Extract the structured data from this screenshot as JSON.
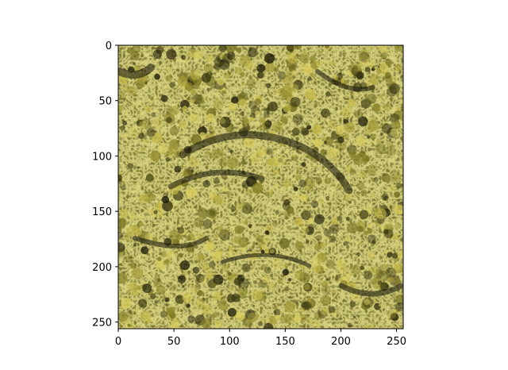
{
  "image_panel": {
    "description_type": "aerial forest canopy image",
    "palette": {
      "deep_shadow": "#1b1a06",
      "shadow": "#3a3810",
      "mid_olive": "#6f6a1e",
      "olive": "#857f27",
      "yellow_green": "#a39a35",
      "highlight": "#c4b848",
      "bright_highlight": "#d8cc5c"
    }
  },
  "axes": {
    "x": {
      "ticks": [
        0,
        50,
        100,
        150,
        200,
        250
      ],
      "range": [
        0,
        256
      ]
    },
    "y": {
      "ticks": [
        0,
        50,
        100,
        150,
        200,
        250
      ],
      "range": [
        0,
        256
      ],
      "inverted": true
    }
  },
  "x_tick_labels": [
    "0",
    "50",
    "100",
    "150",
    "200",
    "250"
  ],
  "y_tick_labels": [
    "0",
    "50",
    "100",
    "150",
    "200",
    "250"
  ]
}
